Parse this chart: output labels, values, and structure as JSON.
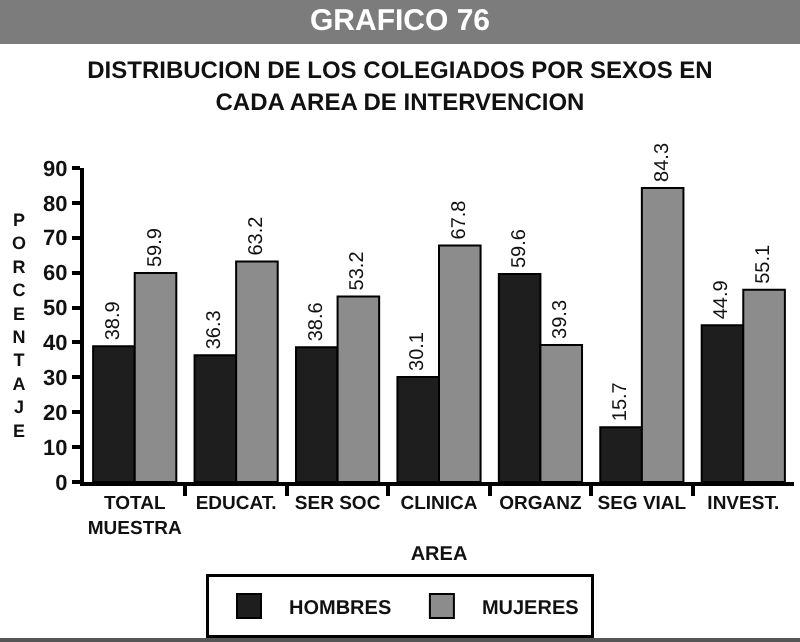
{
  "chart_data": {
    "type": "bar",
    "title": "GRAFICO 76",
    "subtitle": "DISTRIBUCION DE LOS COLEGIADOS POR SEXOS EN CADA AREA DE INTERVENCION",
    "xlabel": "AREA",
    "ylabel": "PORCENTAJE",
    "categories": [
      "TOTAL MUESTRA",
      "EDUCAT.",
      "SER SOC",
      "CLINICA",
      "ORGANZ",
      "SEG VIAL",
      "INVEST."
    ],
    "series": [
      {
        "name": "HOMBRES",
        "color": "#1e1e1e",
        "values": [
          38.9,
          36.3,
          38.6,
          30.1,
          59.6,
          15.7,
          44.9
        ]
      },
      {
        "name": "MUJERES",
        "color": "#8c8c8c",
        "values": [
          59.9,
          63.2,
          53.2,
          67.8,
          39.3,
          84.3,
          55.1
        ]
      }
    ],
    "ylim": [
      0,
      90
    ],
    "yticks": [
      0,
      10,
      20,
      30,
      40,
      50,
      60,
      70,
      80,
      90
    ],
    "legend": "bottom",
    "data_labels": true
  }
}
